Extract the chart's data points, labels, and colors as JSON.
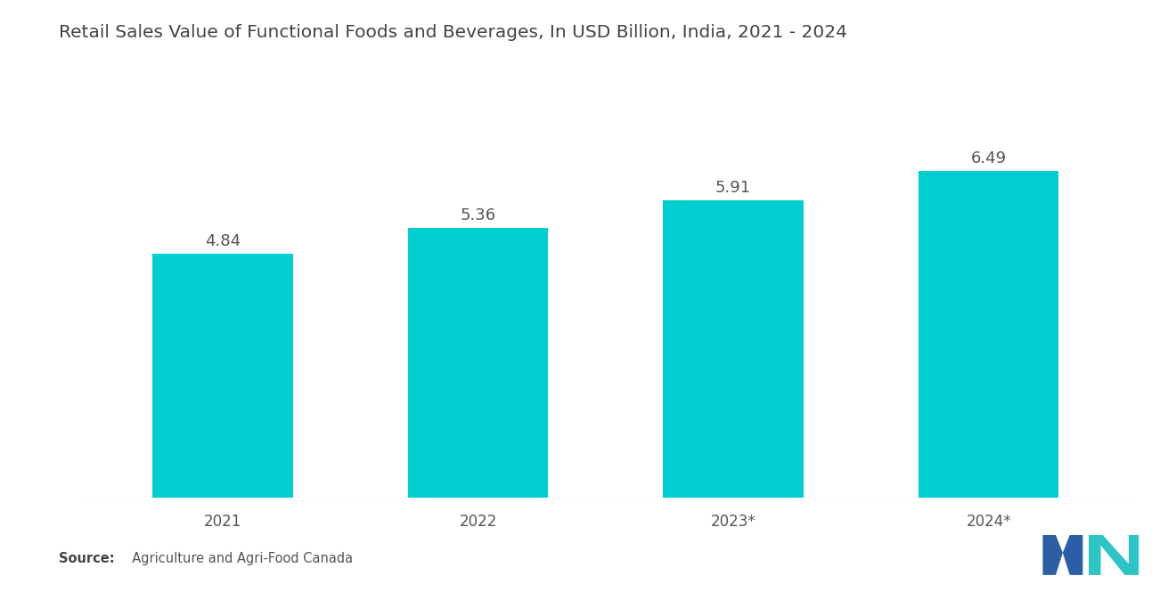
{
  "title": "Retail Sales Value of Functional Foods and Beverages, In USD Billion, India, 2021 - 2024",
  "categories": [
    "2021",
    "2022",
    "2023*",
    "2024*"
  ],
  "values": [
    4.84,
    5.36,
    5.91,
    6.49
  ],
  "bar_color": "#00CED1",
  "background_color": "#ffffff",
  "title_fontsize": 14.5,
  "label_fontsize": 13,
  "tick_fontsize": 12,
  "source_bold": "Source:",
  "source_rest": "  Agriculture and Agri-Food Canada",
  "ylim": [
    0,
    8
  ],
  "bar_width": 0.55,
  "logo_blue": "#2B5FA5",
  "logo_teal": "#2CC4C4"
}
